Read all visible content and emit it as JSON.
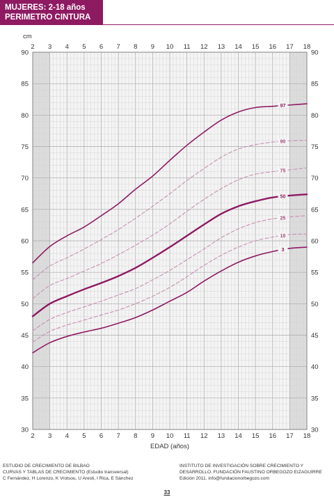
{
  "header": {
    "title_line1": "MUJERES: 2-18 años",
    "title_line2": "PERIMETRO CINTURA"
  },
  "colors": {
    "accent": "#8e1a62",
    "dashed": "#c98fb4",
    "grid_shade": "#dcdcdc"
  },
  "chart_data": {
    "type": "line",
    "xlabel": "EDAD (años)",
    "ylabel": "cm",
    "xlim": [
      2,
      18
    ],
    "ylim": [
      30,
      90
    ],
    "x_ticks": [
      2,
      3,
      4,
      5,
      6,
      7,
      8,
      9,
      10,
      11,
      12,
      13,
      14,
      15,
      16,
      17,
      18
    ],
    "y_ticks": [
      30,
      35,
      40,
      45,
      50,
      55,
      60,
      65,
      70,
      75,
      80,
      85,
      90
    ],
    "grid": true,
    "x": [
      2,
      3,
      4,
      5,
      6,
      7,
      8,
      9,
      10,
      11,
      12,
      13,
      14,
      15,
      16,
      17,
      18
    ],
    "series": [
      {
        "name": "97",
        "style": "solid",
        "values": [
          56.5,
          59.1,
          60.8,
          62.2,
          64.0,
          65.9,
          68.2,
          70.3,
          72.8,
          75.2,
          77.3,
          79.2,
          80.5,
          81.2,
          81.4,
          81.6,
          81.8
        ]
      },
      {
        "name": "90",
        "style": "dashed",
        "values": [
          53.8,
          56.0,
          57.3,
          58.7,
          60.2,
          61.8,
          63.6,
          65.5,
          67.5,
          69.6,
          71.5,
          73.3,
          74.6,
          75.3,
          75.7,
          75.9,
          76.0
        ]
      },
      {
        "name": "75",
        "style": "dashed",
        "values": [
          50.8,
          52.9,
          54.0,
          55.2,
          56.4,
          57.8,
          59.3,
          60.9,
          62.7,
          64.7,
          66.6,
          68.3,
          69.7,
          70.6,
          71.0,
          71.3,
          71.6
        ]
      },
      {
        "name": "50",
        "style": "bold",
        "values": [
          48.0,
          50.0,
          51.2,
          52.3,
          53.3,
          54.4,
          55.7,
          57.3,
          59.0,
          60.8,
          62.6,
          64.3,
          65.5,
          66.3,
          66.9,
          67.2,
          67.4
        ]
      },
      {
        "name": "25",
        "style": "dashed",
        "values": [
          45.7,
          47.5,
          48.6,
          49.5,
          50.4,
          51.4,
          52.4,
          53.8,
          55.3,
          57.0,
          58.7,
          60.5,
          61.9,
          62.9,
          63.5,
          63.8,
          64.0
        ]
      },
      {
        "name": "10",
        "style": "dashed",
        "values": [
          43.9,
          45.6,
          46.6,
          47.4,
          48.2,
          49.0,
          50.0,
          51.2,
          52.6,
          54.3,
          56.1,
          57.7,
          59.0,
          60.0,
          60.6,
          61.0,
          61.1
        ]
      },
      {
        "name": "3",
        "style": "solid",
        "values": [
          42.2,
          43.8,
          44.8,
          45.5,
          46.1,
          46.9,
          47.8,
          49.0,
          50.4,
          51.8,
          53.6,
          55.2,
          56.6,
          57.6,
          58.3,
          58.8,
          59.0
        ]
      }
    ]
  },
  "footer": {
    "left_line1": "ESTUDIO DE CRECIMIENTO DE BILBAO",
    "left_line2": "CURVAS Y TABLAS DE CRECIMIENTO (Estudio transversal)",
    "left_line3": "C Fernández, H Lorenzo, K Vrotsou, U Aresti, I Rica, E Sánchez",
    "right_line1": "INSTITUTO DE INVESTIGACIÓN SOBRE CRECIMIENTO Y",
    "right_line2": "DESARROLLO. FUNDACIÓN FAUSTINO ORBEGOZO EIZAGUIRRE",
    "right_line3": "Edición 2011. info@fundacionorbegozo.com",
    "page_number": "33"
  }
}
